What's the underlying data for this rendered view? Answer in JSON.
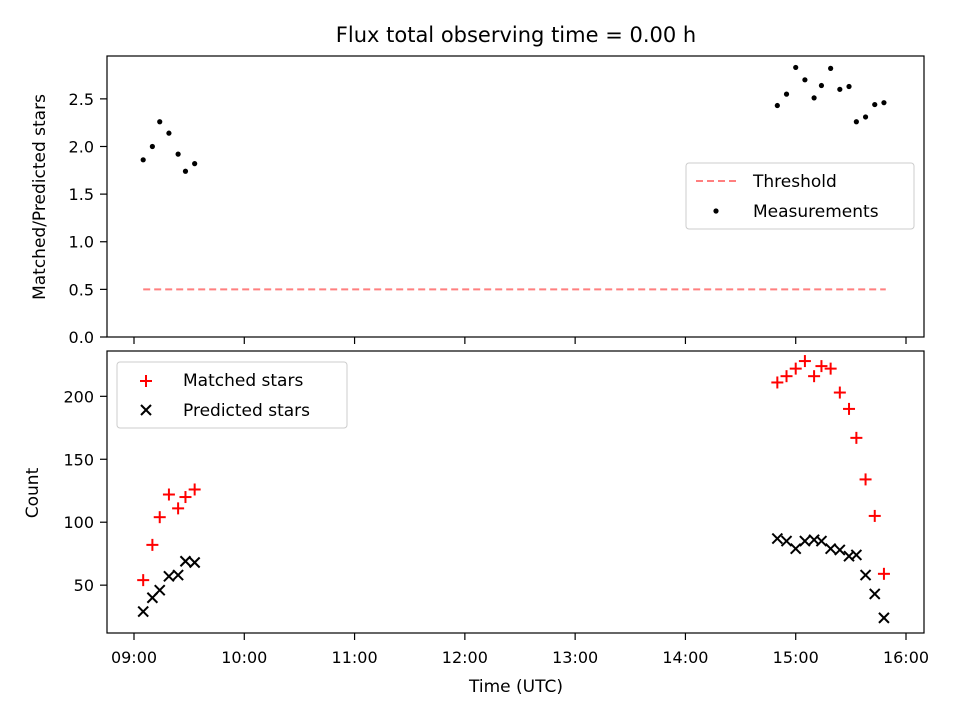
{
  "title": "Flux total observing time = 0.00 h",
  "xlabel": "Time (UTC)",
  "x_ticks": [
    "09:00",
    "10:00",
    "11:00",
    "12:00",
    "13:00",
    "14:00",
    "15:00",
    "16:00"
  ],
  "chart_data": [
    {
      "type": "scatter",
      "ylabel": "Matched/Predicted stars",
      "ylim": [
        0,
        2.95
      ],
      "y_ticks": [
        "0.0",
        "0.5",
        "1.0",
        "1.5",
        "2.0",
        "2.5"
      ],
      "legend_placement": "center-right",
      "series": [
        {
          "name": "Threshold",
          "kind": "dashed-line",
          "color": "#ff7f7f",
          "x": [
            "09:05",
            "15:49"
          ],
          "y": [
            0.5,
            0.5
          ]
        },
        {
          "name": "Measurements",
          "kind": "dot",
          "color": "#000000",
          "x": [
            "09:05",
            "09:10",
            "09:14",
            "09:19",
            "09:24",
            "09:28",
            "09:33",
            "14:50",
            "14:55",
            "15:00",
            "15:05",
            "15:10",
            "15:14",
            "15:19",
            "15:24",
            "15:29",
            "15:33",
            "15:38",
            "15:43",
            "15:48"
          ],
          "y": [
            1.86,
            2.0,
            2.26,
            2.14,
            1.92,
            1.74,
            1.82,
            2.43,
            2.55,
            2.83,
            2.7,
            2.51,
            2.64,
            2.82,
            2.6,
            2.63,
            2.26,
            2.31,
            2.44,
            2.46
          ]
        }
      ]
    },
    {
      "type": "scatter",
      "ylabel": "Count",
      "ylim": [
        12,
        236
      ],
      "y_ticks": [
        "50",
        "100",
        "150",
        "200"
      ],
      "legend_placement": "upper-left",
      "series": [
        {
          "name": "Matched stars",
          "kind": "plus",
          "color": "#ff0000",
          "x": [
            "09:05",
            "09:10",
            "09:14",
            "09:19",
            "09:24",
            "09:28",
            "09:33",
            "14:50",
            "14:55",
            "15:00",
            "15:05",
            "15:10",
            "15:14",
            "15:19",
            "15:24",
            "15:29",
            "15:33",
            "15:38",
            "15:43",
            "15:48"
          ],
          "y": [
            54,
            82,
            104,
            122,
            111,
            120,
            126,
            211,
            216,
            222,
            228,
            216,
            224,
            222,
            203,
            190,
            167,
            134,
            105,
            59
          ]
        },
        {
          "name": "Predicted stars",
          "kind": "x",
          "color": "#000000",
          "x": [
            "09:05",
            "09:10",
            "09:14",
            "09:19",
            "09:24",
            "09:28",
            "09:33",
            "14:50",
            "14:55",
            "15:00",
            "15:05",
            "15:10",
            "15:14",
            "15:19",
            "15:24",
            "15:29",
            "15:33",
            "15:38",
            "15:43",
            "15:48"
          ],
          "y": [
            29,
            40,
            46,
            57,
            58,
            69,
            68,
            87,
            85,
            79,
            85,
            86,
            85,
            79,
            78,
            73,
            74,
            58,
            43,
            24
          ]
        }
      ]
    }
  ]
}
